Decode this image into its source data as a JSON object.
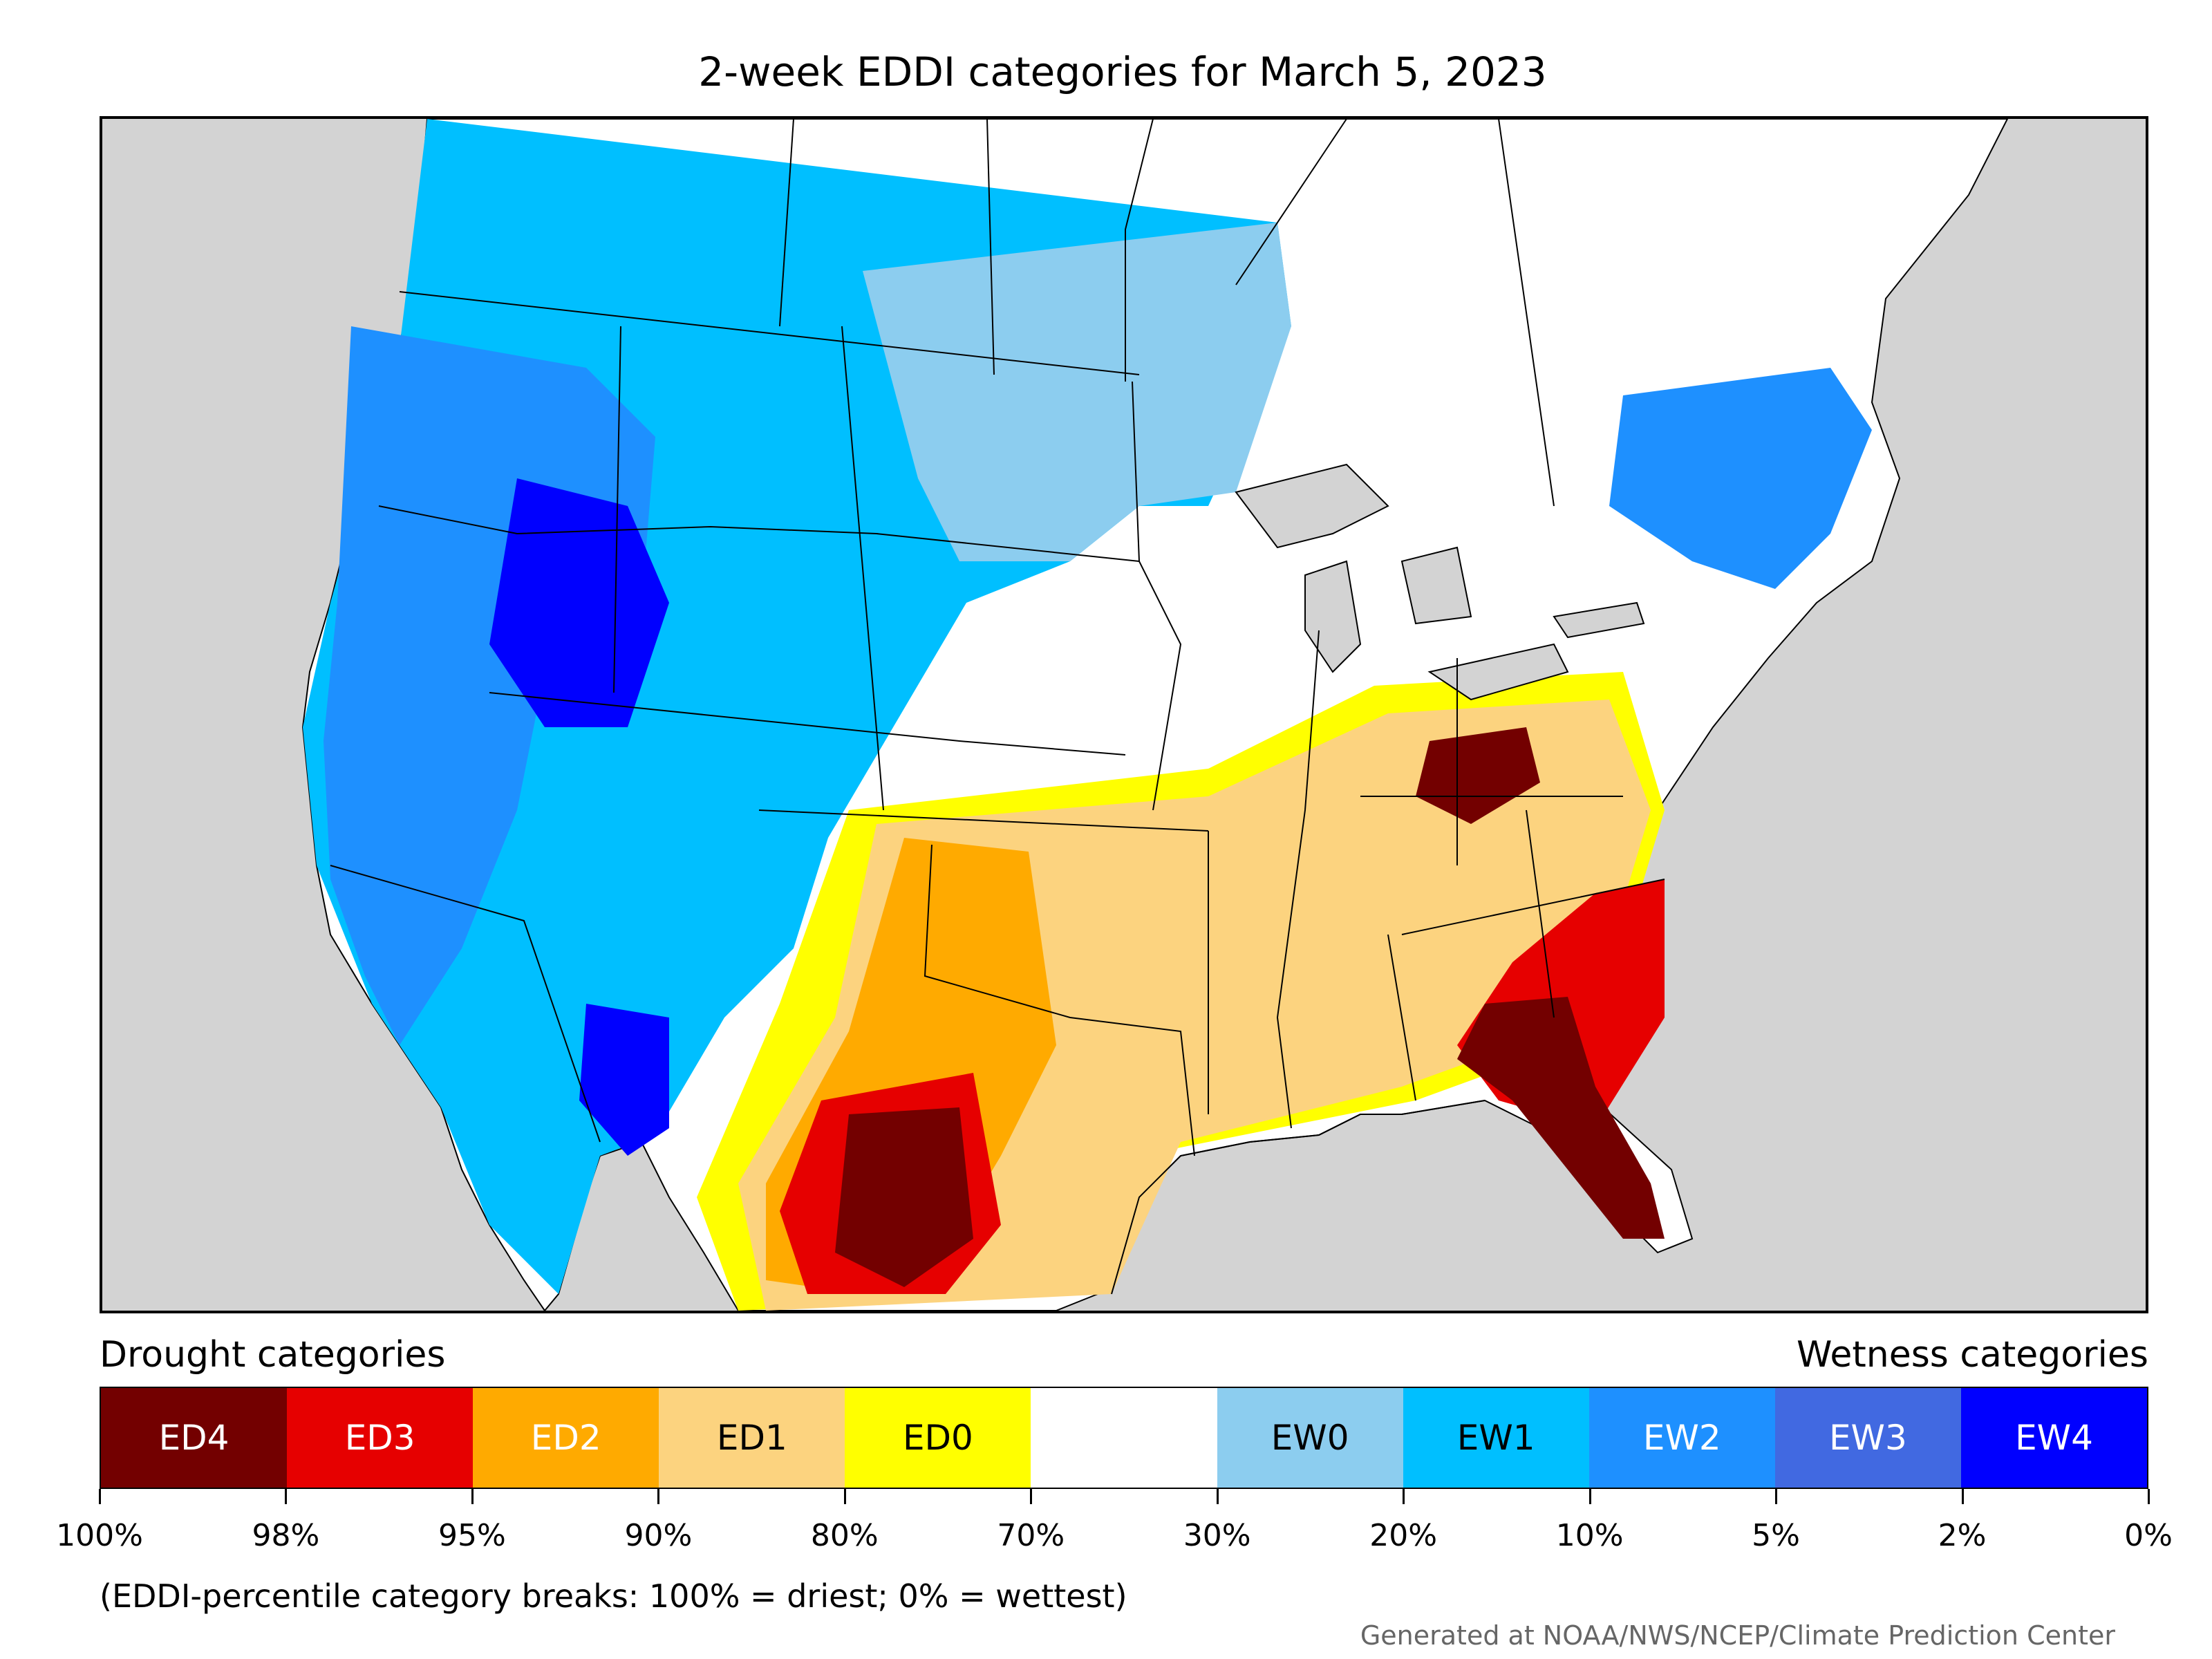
{
  "title": "2-week EDDI categories for March 5, 2023",
  "legend": {
    "drought_heading": "Drought categories",
    "wetness_heading": "Wetness categories",
    "categories": [
      {
        "label": "ED4",
        "color": "#730000",
        "text_color": "#ffffff"
      },
      {
        "label": "ED3",
        "color": "#e60000",
        "text_color": "#ffffff"
      },
      {
        "label": "ED2",
        "color": "#ffaa00",
        "text_color": "#ffffff"
      },
      {
        "label": "ED1",
        "color": "#fcd37f",
        "text_color": "#000000"
      },
      {
        "label": "ED0",
        "color": "#ffff00",
        "text_color": "#000000"
      },
      {
        "label": "",
        "color": "#ffffff",
        "text_color": "#000000"
      },
      {
        "label": "EW0",
        "color": "#8ccdef",
        "text_color": "#000000"
      },
      {
        "label": "EW1",
        "color": "#00bfff",
        "text_color": "#000000"
      },
      {
        "label": "EW2",
        "color": "#1e90ff",
        "text_color": "#ffffff"
      },
      {
        "label": "EW3",
        "color": "#4169e1",
        "text_color": "#ffffff"
      },
      {
        "label": "EW4",
        "color": "#0000ff",
        "text_color": "#ffffff"
      }
    ],
    "breaks": [
      "100%",
      "98%",
      "95%",
      "90%",
      "80%",
      "70%",
      "30%",
      "20%",
      "10%",
      "5%",
      "2%",
      "0%"
    ]
  },
  "note": "(EDDI-percentile category breaks: 100% = driest; 0% = wettest)",
  "credit": "Generated at NOAA/NWS/NCEP/Climate Prediction Center",
  "map": {
    "ocean_color": "#d3d3d3",
    "land_color": "#ffffff",
    "lake_color": "#d3d3d3"
  }
}
